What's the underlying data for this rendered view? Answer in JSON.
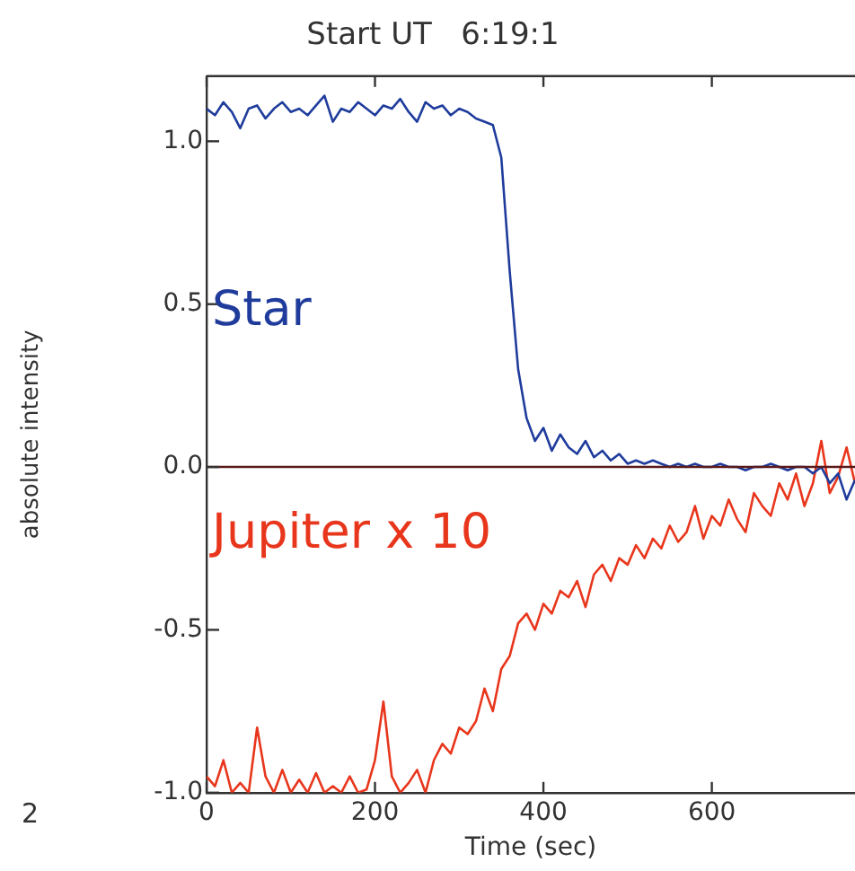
{
  "chart_data": {
    "type": "line",
    "title": "Start UT   6:19:1",
    "xlabel": "Time (sec)",
    "ylabel": "absolute intensity",
    "annotations": [
      "2"
    ],
    "xlim": [
      0,
      770
    ],
    "xticks": [
      0,
      200,
      400,
      600
    ],
    "ylim": [
      -1.0,
      1.2
    ],
    "yticks": [
      {
        "value": -1.0,
        "label": "-1.0"
      },
      {
        "value": -0.5,
        "label": "-0.5"
      },
      {
        "value": 0,
        "label": "0.0"
      },
      {
        "value": 0.5,
        "label": "0.5"
      },
      {
        "value": 1.0,
        "label": "1.0"
      }
    ],
    "grid": false,
    "legend": false,
    "marker": "none",
    "line_style": "solid",
    "ref_lines": [
      {
        "axis": "y",
        "value": 0,
        "color": "#5a1a1a"
      }
    ],
    "x": [
      0,
      10,
      20,
      30,
      40,
      50,
      60,
      70,
      80,
      90,
      100,
      110,
      120,
      130,
      140,
      150,
      160,
      170,
      180,
      190,
      200,
      210,
      220,
      230,
      240,
      250,
      260,
      270,
      280,
      290,
      300,
      310,
      320,
      330,
      340,
      350,
      360,
      370,
      380,
      390,
      400,
      410,
      420,
      430,
      440,
      450,
      460,
      470,
      480,
      490,
      500,
      510,
      520,
      530,
      540,
      550,
      560,
      570,
      580,
      590,
      600,
      610,
      620,
      630,
      640,
      650,
      660,
      670,
      680,
      690,
      700,
      710,
      720,
      730,
      740,
      750,
      760,
      770
    ],
    "series": [
      {
        "name": "Star",
        "color": "#1f3c9c",
        "values": [
          1.1,
          1.08,
          1.12,
          1.09,
          1.04,
          1.1,
          1.11,
          1.07,
          1.1,
          1.12,
          1.09,
          1.1,
          1.08,
          1.11,
          1.14,
          1.06,
          1.1,
          1.09,
          1.12,
          1.1,
          1.08,
          1.11,
          1.1,
          1.13,
          1.09,
          1.06,
          1.12,
          1.1,
          1.11,
          1.08,
          1.1,
          1.09,
          1.07,
          1.06,
          1.05,
          0.95,
          0.6,
          0.3,
          0.15,
          0.08,
          0.12,
          0.05,
          0.1,
          0.06,
          0.04,
          0.08,
          0.03,
          0.05,
          0.02,
          0.04,
          0.01,
          0.02,
          0.01,
          0.02,
          0.01,
          0.0,
          0.01,
          0.0,
          0.01,
          0.0,
          0.0,
          0.01,
          0.0,
          0.0,
          -0.01,
          0.0,
          0.0,
          0.01,
          0.0,
          -0.01,
          0.0,
          0.0,
          -0.02,
          0.0,
          -0.05,
          -0.02,
          -0.1,
          -0.04
        ]
      },
      {
        "name": "Jupiter x 10",
        "color": "#e8361c",
        "values": [
          -0.95,
          -0.98,
          -0.9,
          -1.0,
          -0.97,
          -1.0,
          -0.8,
          -0.95,
          -1.0,
          -0.93,
          -1.0,
          -0.96,
          -1.0,
          -0.94,
          -1.0,
          -0.98,
          -1.0,
          -0.95,
          -1.0,
          -0.99,
          -0.9,
          -0.72,
          -0.95,
          -1.0,
          -0.97,
          -0.93,
          -1.0,
          -0.9,
          -0.85,
          -0.88,
          -0.8,
          -0.82,
          -0.78,
          -0.68,
          -0.75,
          -0.62,
          -0.58,
          -0.48,
          -0.45,
          -0.5,
          -0.42,
          -0.45,
          -0.38,
          -0.4,
          -0.35,
          -0.43,
          -0.33,
          -0.3,
          -0.35,
          -0.28,
          -0.3,
          -0.24,
          -0.28,
          -0.22,
          -0.25,
          -0.18,
          -0.23,
          -0.2,
          -0.12,
          -0.22,
          -0.15,
          -0.18,
          -0.1,
          -0.16,
          -0.2,
          -0.08,
          -0.12,
          -0.15,
          -0.05,
          -0.1,
          -0.02,
          -0.12,
          -0.05,
          0.08,
          -0.08,
          -0.03,
          0.06,
          -0.05
        ]
      }
    ]
  }
}
